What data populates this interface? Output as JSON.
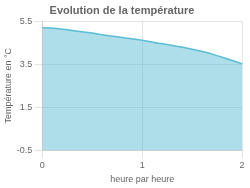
{
  "chart_data": {
    "type": "area",
    "title": "Evolution de la température",
    "xlabel": "heure par heure",
    "ylabel": "Température en °C",
    "x": [
      0.0,
      0.083,
      0.167,
      0.25,
      0.333,
      0.417,
      0.5,
      0.583,
      0.667,
      0.75,
      0.833,
      0.917,
      1.0,
      1.083,
      1.167,
      1.25,
      1.333,
      1.417,
      1.5,
      1.583,
      1.667,
      1.75,
      1.833,
      1.917,
      2.0
    ],
    "values": [
      5.2,
      5.18,
      5.15,
      5.1,
      5.05,
      5.0,
      4.95,
      4.88,
      4.82,
      4.78,
      4.72,
      4.67,
      4.62,
      4.55,
      4.48,
      4.42,
      4.35,
      4.28,
      4.2,
      4.12,
      4.02,
      3.9,
      3.78,
      3.65,
      3.52
    ],
    "color": "#5bbdd4",
    "xlim": [
      0,
      2
    ],
    "ylim": [
      -0.5,
      5.5
    ],
    "xticks": [
      0,
      1,
      2
    ],
    "yticks": [
      -0.5,
      1.5,
      3.5,
      5.5
    ],
    "grid": true
  }
}
